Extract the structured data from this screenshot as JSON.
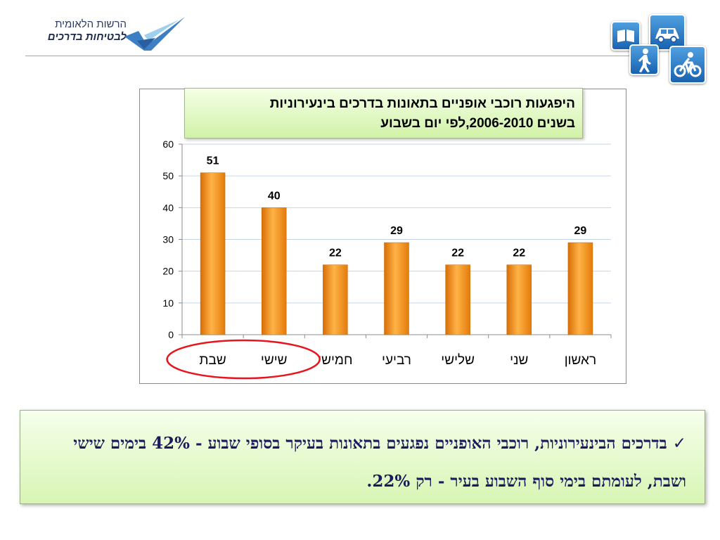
{
  "header": {
    "logo_line1": "הרשות הלאומית",
    "logo_line2": "לבטיחות בדרכים",
    "icons": [
      "book-icon",
      "car-icon",
      "pedestrian-icon",
      "bicycle-icon"
    ]
  },
  "chart_title_line1": "היפגעות רוכבי אופניים בתאונות בדרכים בינעירוניות",
  "chart_title_line2": "בשנים 2006-2010,לפי יום בשבוע",
  "note": {
    "check": "✓",
    "text": "בדרכים הבינעירוניות, רוכבי האופניים נפגעים בתאונות בעיקר בסופי שבוע - 42% בימים שישי ושבת, לעומתם בימי סוף השבוע בעיר - רק 22%."
  },
  "chart_data": {
    "type": "bar",
    "title": "היפגעות רוכבי אופניים בתאונות בדרכים בינעירוניות בשנים 2006-2010,לפי יום בשבוע",
    "categories": [
      "ראשון",
      "שני",
      "שלישי",
      "רביעי",
      "חמישי",
      "שישי",
      "שבת"
    ],
    "values": [
      29,
      22,
      22,
      29,
      22,
      40,
      51
    ],
    "ylim": [
      0,
      60
    ],
    "yticks": [
      0,
      10,
      20,
      30,
      40,
      50,
      60
    ],
    "grid": true,
    "bar_color": "#f08a14",
    "highlight_color": "#e8141e",
    "highlighted_categories": [
      "שישי",
      "שבת"
    ]
  }
}
